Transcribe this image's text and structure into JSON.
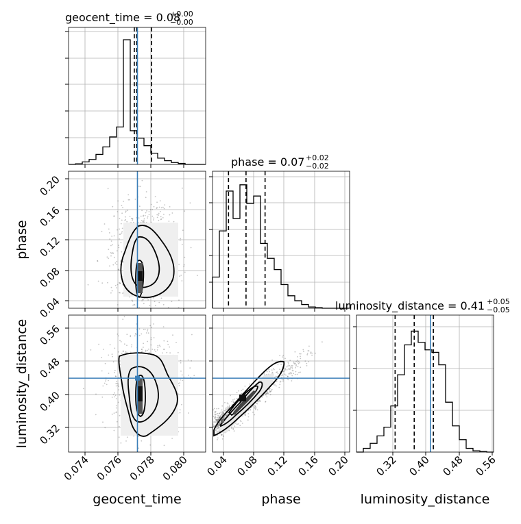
{
  "chart_data": {
    "type": "corner",
    "parameters": [
      {
        "name": "geocent_time",
        "range": [
          0.073,
          0.0813
        ],
        "ticks": [
          0.074,
          0.076,
          0.078,
          0.08
        ],
        "tick_labels": [
          "0.074",
          "0.076",
          "0.078",
          "0.080"
        ],
        "truth": 0.07717,
        "quantiles": [
          0.07698,
          0.07712,
          0.07803
        ],
        "title": {
          "main": "geocent_time = 0.08",
          "upper": "+0.00",
          "lower": "−0.00"
        },
        "hist": [
          0,
          0.005,
          0.02,
          0.04,
          0.08,
          0.14,
          0.22,
          0.3,
          1.0,
          0.27,
          0.21,
          0.15,
          0.09,
          0.05,
          0.03,
          0.015,
          0.008,
          0,
          0,
          0
        ]
      },
      {
        "name": "phase",
        "range": [
          0.025,
          0.205
        ],
        "ticks": [
          0.04,
          0.08,
          0.12,
          0.16,
          0.2
        ],
        "tick_labels": [
          "0.04",
          "0.08",
          "0.12",
          "0.16",
          "0.20"
        ],
        "truth": null,
        "quantiles": [
          0.046,
          0.069,
          0.094
        ],
        "title": {
          "main": "phase = 0.07",
          "upper": "+0.02",
          "lower": "−0.02"
        },
        "hist": [
          0.25,
          0.62,
          0.94,
          0.72,
          0.99,
          0.84,
          0.9,
          0.52,
          0.4,
          0.31,
          0.19,
          0.1,
          0.06,
          0.03,
          0.01,
          0.005,
          0,
          0,
          0,
          0
        ]
      },
      {
        "name": "luminosity_distance",
        "range": [
          0.272,
          0.602
        ],
        "ticks": [
          0.32,
          0.4,
          0.48,
          0.56
        ],
        "tick_labels": [
          "0.32",
          "0.40",
          "0.48",
          "0.56"
        ],
        "truth": 0.45,
        "quantiles": [
          0.365,
          0.411,
          0.457
        ],
        "title": {
          "main": "luminosity_distance = 0.41",
          "upper": "+0.05",
          "lower": "−0.05"
        },
        "hist": [
          0,
          0.03,
          0.07,
          0.13,
          0.2,
          0.37,
          0.62,
          0.86,
          0.97,
          0.88,
          0.82,
          0.8,
          0.7,
          0.4,
          0.21,
          0.1,
          0.03,
          0.01,
          0.005,
          0
        ]
      }
    ]
  }
}
